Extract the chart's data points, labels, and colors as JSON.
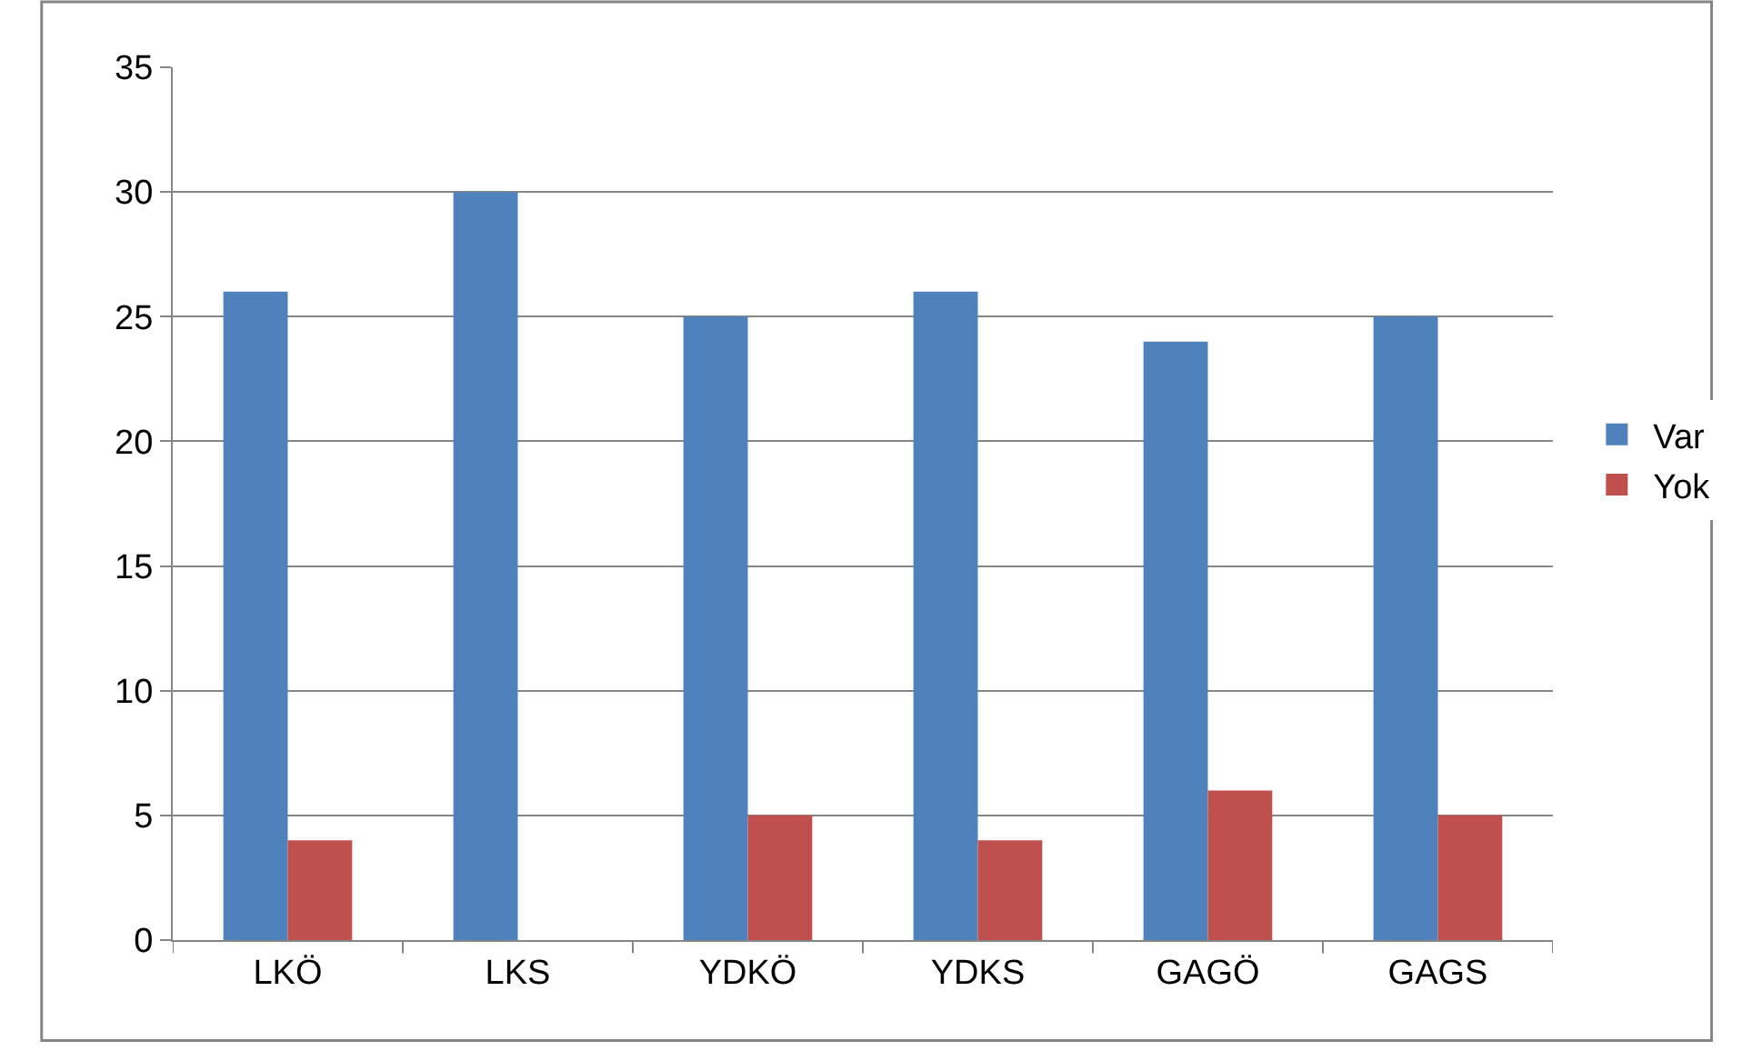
{
  "chart_data": {
    "type": "bar",
    "categories": [
      "LKÖ",
      "LKS",
      "YDKÖ",
      "YDKS",
      "GAGÖ",
      "GAGS"
    ],
    "series": [
      {
        "name": "Var",
        "color": "#4f81bd",
        "values": [
          26,
          30,
          25,
          26,
          24,
          25
        ]
      },
      {
        "name": "Yok",
        "color": "#c0504d",
        "values": [
          4,
          0,
          5,
          4,
          6,
          5
        ]
      }
    ],
    "ylim": [
      0,
      35
    ],
    "yticks": [
      0,
      5,
      10,
      15,
      20,
      25,
      30,
      35
    ],
    "grid": "y",
    "legend": "right"
  }
}
